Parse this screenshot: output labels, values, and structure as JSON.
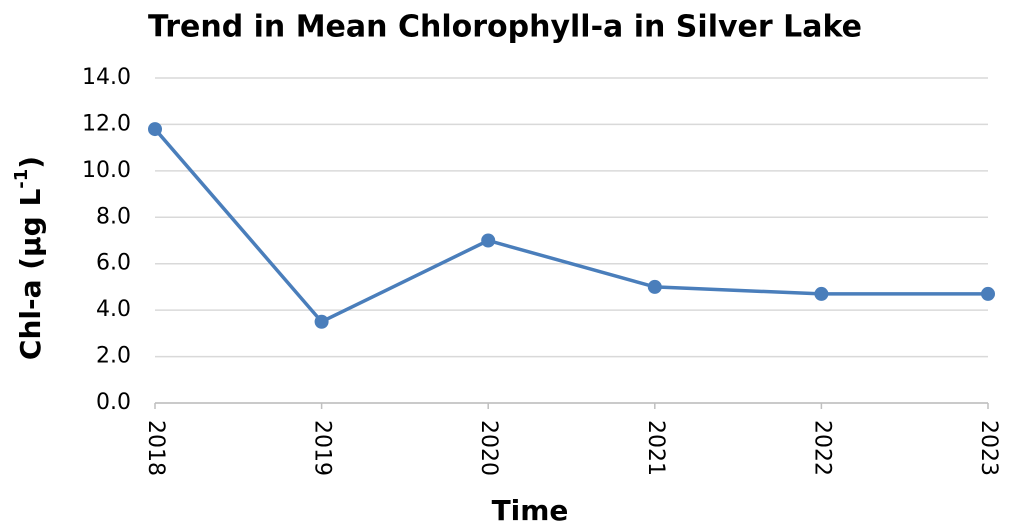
{
  "chart_data": {
    "type": "line",
    "title": "Trend in Mean Chlorophyll-a in Silver Lake",
    "xlabel": "Time",
    "ylabel": [
      "Chl-a (µg L",
      "-1",
      ")"
    ],
    "categories": [
      "2018",
      "2019",
      "2020",
      "2021",
      "2022",
      "2023"
    ],
    "series": [
      {
        "name": "Mean Chl-a",
        "color": "#4a7ebb",
        "values": [
          11.8,
          3.5,
          7.0,
          5.0,
          4.7,
          4.7
        ]
      }
    ],
    "ylim": [
      0,
      14
    ],
    "yticks": [
      {
        "value": 0,
        "label": "0.0"
      },
      {
        "value": 2,
        "label": "2.0"
      },
      {
        "value": 4,
        "label": "4.0"
      },
      {
        "value": 6,
        "label": "6.0"
      },
      {
        "value": 8,
        "label": "8.0"
      },
      {
        "value": 10,
        "label": "10.0"
      },
      {
        "value": 12,
        "label": "12.0"
      },
      {
        "value": 14,
        "label": "14.0"
      }
    ],
    "grid": true
  }
}
